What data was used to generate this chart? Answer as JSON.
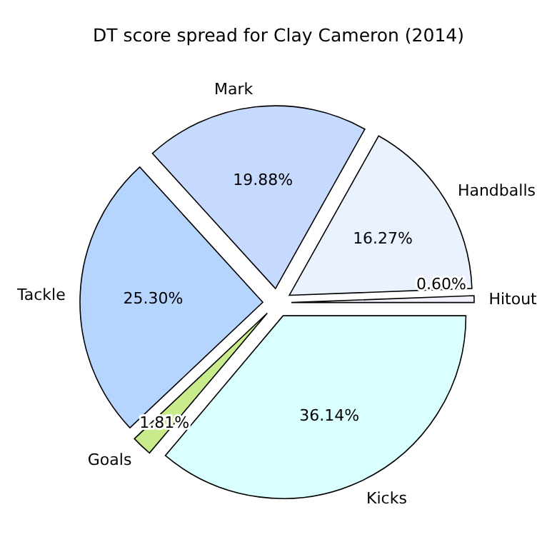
{
  "chart_data": {
    "type": "pie",
    "title": "DT score spread for Clay Cameron (2014)",
    "categories": [
      "Hitout",
      "Handballs",
      "Mark",
      "Tackle",
      "Goals",
      "Kicks"
    ],
    "values": [
      0.6,
      16.27,
      19.88,
      25.3,
      1.81,
      36.14
    ],
    "colors": [
      "#f2f2ff",
      "#eaf2ff",
      "#c6d9ff",
      "#b5d5ff",
      "#c8ec8c",
      "#d9ffff"
    ],
    "value_labels": [
      "0.60%",
      "16.27%",
      "19.88%",
      "25.30%",
      "1.81%",
      "36.14%"
    ]
  }
}
